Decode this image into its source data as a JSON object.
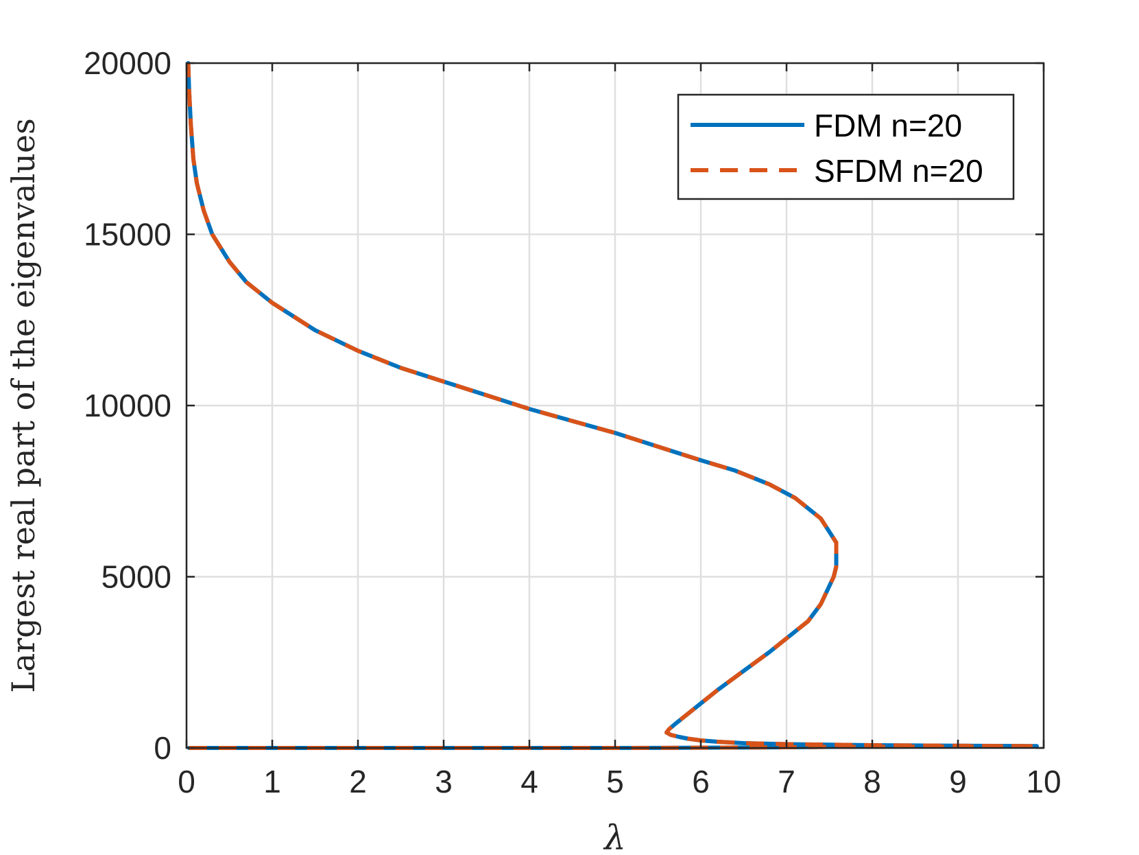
{
  "chart_data": {
    "type": "line",
    "title": "",
    "xlabel": "λ",
    "ylabel": "Largest real part of the eigenvalues",
    "xlim": [
      0,
      10
    ],
    "ylim": [
      0,
      20000
    ],
    "xticks": [
      "0",
      "1",
      "2",
      "3",
      "4",
      "5",
      "6",
      "7",
      "8",
      "9",
      "10"
    ],
    "yticks": [
      "0",
      "5000",
      "10000",
      "15000",
      "20000"
    ],
    "grid": true,
    "legend_position": "top-right",
    "series": [
      {
        "name": "FDM n=20",
        "color": "#0072BD",
        "style": "solid",
        "points": [
          [
            0.03,
            0
          ],
          [
            1.0,
            0
          ],
          [
            2.0,
            0
          ],
          [
            3.0,
            0
          ],
          [
            4.0,
            0
          ],
          [
            5.0,
            0
          ],
          [
            5.6,
            2
          ],
          [
            6.0,
            8
          ],
          [
            6.5,
            12
          ],
          [
            7.0,
            20
          ],
          [
            7.5,
            30
          ],
          [
            8.0,
            35
          ],
          [
            8.5,
            40
          ],
          [
            9.0,
            45
          ],
          [
            9.5,
            50
          ],
          [
            9.92,
            55
          ],
          [
            9.0,
            65
          ],
          [
            8.0,
            80
          ],
          [
            7.0,
            110
          ],
          [
            6.5,
            140
          ],
          [
            6.2,
            180
          ],
          [
            6.0,
            220
          ],
          [
            5.85,
            270
          ],
          [
            5.75,
            320
          ],
          [
            5.65,
            380
          ],
          [
            5.6,
            450
          ],
          [
            5.63,
            550
          ],
          [
            5.7,
            700
          ],
          [
            5.8,
            900
          ],
          [
            6.0,
            1300
          ],
          [
            6.2,
            1700
          ],
          [
            6.5,
            2250
          ],
          [
            6.8,
            2800
          ],
          [
            7.0,
            3200
          ],
          [
            7.25,
            3700
          ],
          [
            7.4,
            4200
          ],
          [
            7.55,
            5000
          ],
          [
            7.58,
            5300
          ],
          [
            7.58,
            6000
          ],
          [
            7.4,
            6700
          ],
          [
            7.1,
            7300
          ],
          [
            6.8,
            7700
          ],
          [
            6.4,
            8100
          ],
          [
            6.0,
            8400
          ],
          [
            5.5,
            8800
          ],
          [
            5.0,
            9200
          ],
          [
            4.5,
            9550
          ],
          [
            4.0,
            9900
          ],
          [
            3.5,
            10300
          ],
          [
            3.0,
            10700
          ],
          [
            2.5,
            11100
          ],
          [
            2.0,
            11600
          ],
          [
            1.5,
            12200
          ],
          [
            1.0,
            13000
          ],
          [
            0.7,
            13600
          ],
          [
            0.5,
            14200
          ],
          [
            0.3,
            15000
          ],
          [
            0.2,
            15700
          ],
          [
            0.12,
            16500
          ],
          [
            0.08,
            17200
          ],
          [
            0.05,
            18200
          ],
          [
            0.03,
            19200
          ],
          [
            0.02,
            20000
          ]
        ]
      },
      {
        "name": "SFDM n=20",
        "color": "#D95319",
        "style": "dashed",
        "points": [
          [
            0.03,
            0
          ],
          [
            1.0,
            0
          ],
          [
            2.0,
            0
          ],
          [
            3.0,
            0
          ],
          [
            4.0,
            0
          ],
          [
            5.0,
            0
          ],
          [
            5.6,
            2
          ],
          [
            6.0,
            8
          ],
          [
            6.5,
            12
          ],
          [
            7.0,
            20
          ],
          [
            7.5,
            30
          ],
          [
            8.0,
            35
          ],
          [
            8.5,
            40
          ],
          [
            9.0,
            45
          ],
          [
            9.5,
            50
          ],
          [
            9.92,
            55
          ],
          [
            9.0,
            65
          ],
          [
            8.0,
            80
          ],
          [
            7.0,
            110
          ],
          [
            6.5,
            140
          ],
          [
            6.2,
            180
          ],
          [
            6.0,
            220
          ],
          [
            5.85,
            270
          ],
          [
            5.75,
            320
          ],
          [
            5.65,
            380
          ],
          [
            5.6,
            450
          ],
          [
            5.63,
            550
          ],
          [
            5.7,
            700
          ],
          [
            5.8,
            900
          ],
          [
            6.0,
            1300
          ],
          [
            6.2,
            1700
          ],
          [
            6.5,
            2250
          ],
          [
            6.8,
            2800
          ],
          [
            7.0,
            3200
          ],
          [
            7.25,
            3700
          ],
          [
            7.4,
            4200
          ],
          [
            7.55,
            5000
          ],
          [
            7.58,
            5300
          ],
          [
            7.58,
            6000
          ],
          [
            7.4,
            6700
          ],
          [
            7.1,
            7300
          ],
          [
            6.8,
            7700
          ],
          [
            6.4,
            8100
          ],
          [
            6.0,
            8400
          ],
          [
            5.5,
            8800
          ],
          [
            5.0,
            9200
          ],
          [
            4.5,
            9550
          ],
          [
            4.0,
            9900
          ],
          [
            3.5,
            10300
          ],
          [
            3.0,
            10700
          ],
          [
            2.5,
            11100
          ],
          [
            2.0,
            11600
          ],
          [
            1.5,
            12200
          ],
          [
            1.0,
            13000
          ],
          [
            0.7,
            13600
          ],
          [
            0.5,
            14200
          ],
          [
            0.3,
            15000
          ],
          [
            0.2,
            15700
          ],
          [
            0.12,
            16500
          ],
          [
            0.08,
            17200
          ],
          [
            0.05,
            18200
          ],
          [
            0.03,
            19200
          ],
          [
            0.02,
            20000
          ]
        ]
      }
    ]
  }
}
